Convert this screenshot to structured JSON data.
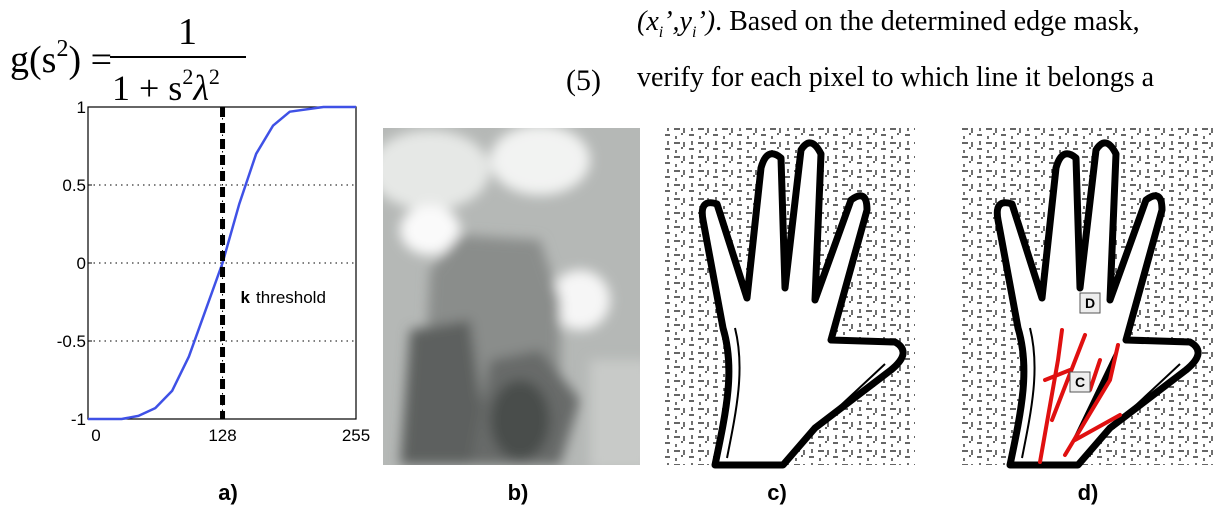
{
  "equation": {
    "lhs": "g(s",
    "lhs_sup": "2",
    "lhs_close": ") =",
    "numerator": "1",
    "den_a": "1 + s",
    "den_sup1": "2",
    "den_lambda": "λ",
    "den_sup2": "2",
    "number": "(5)"
  },
  "text_lines": [
    {
      "a": "(x",
      "sub1": "i",
      "b": "’,y",
      "sub2": "i",
      "c": "’)",
      "rest": ". Based on the determined edge mask,"
    },
    {
      "rest": "verify for each pixel to which line it belongs a"
    }
  ],
  "chart_data": {
    "type": "line",
    "x": [
      0,
      32,
      48,
      64,
      80,
      96,
      112,
      128,
      144,
      160,
      176,
      192,
      224,
      255
    ],
    "series": [
      {
        "color": "#3f51e6",
        "values": [
          -1,
          -1,
          -0.98,
          -0.93,
          -0.82,
          -0.6,
          -0.3,
          0,
          0.38,
          0.7,
          0.88,
          0.97,
          1,
          1
        ]
      }
    ],
    "xlim": [
      0,
      255
    ],
    "ylim": [
      -1,
      1
    ],
    "xticks": [
      0,
      128,
      255
    ],
    "yticks": [
      -1,
      -0.5,
      0,
      0.5,
      1
    ],
    "grid": true,
    "threshold": 128,
    "annotation": {
      "bold": "k",
      "text": "threshold"
    }
  },
  "panels": {
    "labels": [
      "a)",
      "b)",
      "c)",
      "d)"
    ],
    "markers": [
      "D",
      "C"
    ]
  }
}
